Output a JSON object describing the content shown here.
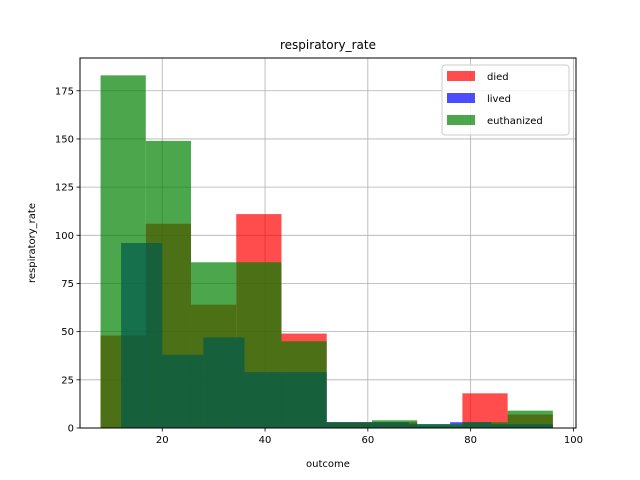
{
  "chart_data": {
    "type": "bar",
    "title": "respiratory_rate",
    "xlabel": "outcome",
    "ylabel": "respiratory_rate",
    "xlim": [
      4.0,
      100.5
    ],
    "ylim": [
      0,
      192
    ],
    "xticks": [
      20,
      40,
      60,
      80,
      100
    ],
    "yticks": [
      0,
      25,
      50,
      75,
      100,
      125,
      150,
      175
    ],
    "grid": true,
    "legend_position": "top-right",
    "bar_opacity": 0.7,
    "series": [
      {
        "name": "died",
        "color": "#ff0000",
        "bins": [
          {
            "x0": 8.0,
            "x1": 16.8,
            "value": 48
          },
          {
            "x0": 16.8,
            "x1": 25.6,
            "value": 106
          },
          {
            "x0": 25.6,
            "x1": 34.4,
            "value": 64
          },
          {
            "x0": 34.4,
            "x1": 43.2,
            "value": 111
          },
          {
            "x0": 43.2,
            "x1": 52.0,
            "value": 49
          },
          {
            "x0": 52.0,
            "x1": 60.8,
            "value": 3
          },
          {
            "x0": 60.8,
            "x1": 69.6,
            "value": 3
          },
          {
            "x0": 69.6,
            "x1": 78.4,
            "value": 1
          },
          {
            "x0": 78.4,
            "x1": 87.2,
            "value": 18
          },
          {
            "x0": 87.2,
            "x1": 96.0,
            "value": 7
          }
        ]
      },
      {
        "name": "lived",
        "color": "#0000ff",
        "bins": [
          {
            "x0": 12.0,
            "x1": 20.0,
            "value": 96
          },
          {
            "x0": 20.0,
            "x1": 28.0,
            "value": 38
          },
          {
            "x0": 28.0,
            "x1": 36.0,
            "value": 47
          },
          {
            "x0": 36.0,
            "x1": 44.0,
            "value": 29
          },
          {
            "x0": 44.0,
            "x1": 52.0,
            "value": 29
          },
          {
            "x0": 52.0,
            "x1": 60.0,
            "value": 3
          },
          {
            "x0": 60.0,
            "x1": 68.0,
            "value": 3
          },
          {
            "x0": 68.0,
            "x1": 76.0,
            "value": 2
          },
          {
            "x0": 76.0,
            "x1": 84.0,
            "value": 3
          },
          {
            "x0": 84.0,
            "x1": 96.0,
            "value": 2
          }
        ]
      },
      {
        "name": "euthanized",
        "color": "#008000",
        "bins": [
          {
            "x0": 8.0,
            "x1": 16.8,
            "value": 183
          },
          {
            "x0": 16.8,
            "x1": 25.6,
            "value": 149
          },
          {
            "x0": 25.6,
            "x1": 34.4,
            "value": 86
          },
          {
            "x0": 34.4,
            "x1": 43.2,
            "value": 86
          },
          {
            "x0": 43.2,
            "x1": 52.0,
            "value": 45
          },
          {
            "x0": 52.0,
            "x1": 60.8,
            "value": 3
          },
          {
            "x0": 60.8,
            "x1": 69.6,
            "value": 4
          },
          {
            "x0": 69.6,
            "x1": 78.4,
            "value": 2
          },
          {
            "x0": 78.4,
            "x1": 87.2,
            "value": 3
          },
          {
            "x0": 87.2,
            "x1": 96.0,
            "value": 9
          }
        ]
      }
    ]
  }
}
